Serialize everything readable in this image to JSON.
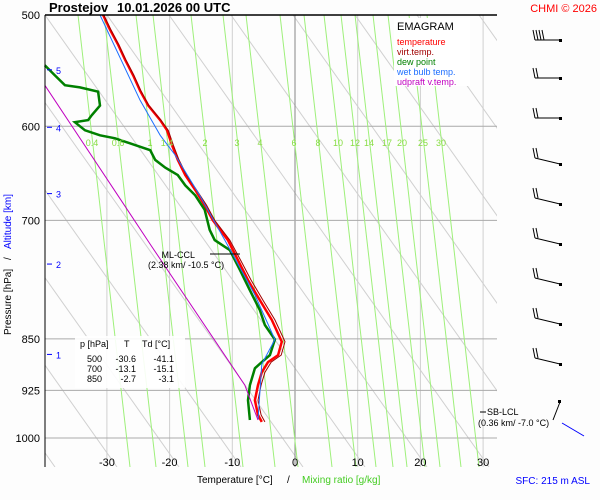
{
  "chart_data": {
    "type": "line",
    "title": "Prostejov",
    "datetime": "10.01.2026 00 UTC",
    "copyright": "CHMI © 2026",
    "diagram_name": "EMAGRAM",
    "xlabel": "Temperature [°C]",
    "xlabel_sep": "/",
    "xlabel2": "Mixing ratio [g/kg]",
    "ylabel": "Pressure [hPa]",
    "ylabel_sep": "/",
    "ylabel2": "Altitude [km]",
    "xlim": [
      -40,
      40
    ],
    "ylim": [
      1000,
      500
    ],
    "x_ticks": [
      "-30",
      "-20",
      "-10",
      "0",
      "10",
      "20",
      "30"
    ],
    "x_tick_values": [
      -30,
      -20,
      -10,
      0,
      10,
      20,
      30
    ],
    "y_ticks": [
      "500",
      "600",
      "700",
      "850",
      "925",
      "1000"
    ],
    "y_tick_values": [
      500,
      600,
      700,
      850,
      925,
      1000
    ],
    "altitude_ticks": [
      {
        "label": "5",
        "p": 547
      },
      {
        "label": "4",
        "p": 601
      },
      {
        "label": "3",
        "p": 670
      },
      {
        "label": "2",
        "p": 752
      },
      {
        "label": "1",
        "p": 872
      }
    ],
    "mixing_ratio_labels": [
      "0.4",
      "0.6",
      "1",
      "1.4",
      "2",
      "3",
      "4",
      "6",
      "8",
      "10",
      "12",
      "14",
      "17",
      "20",
      "25",
      "30"
    ],
    "legend": [
      {
        "label": "temperature",
        "color": "#ff0000"
      },
      {
        "label": "virt.temp.",
        "color": "#a00000"
      },
      {
        "label": "dew point",
        "color": "#008000"
      },
      {
        "label": "wet bulb temp.",
        "color": "#1e6fff"
      },
      {
        "label": "udpraft v.temp.",
        "color": "#c000c0"
      }
    ],
    "series": [
      {
        "name": "temperature",
        "color": "#ff0000",
        "points": [
          [
            -30.6,
            500
          ],
          [
            -29.5,
            512
          ],
          [
            -28.2,
            525
          ],
          [
            -27.1,
            538
          ],
          [
            -25.8,
            552
          ],
          [
            -24.7,
            566
          ],
          [
            -23.4,
            580
          ],
          [
            -21.5,
            594
          ],
          [
            -20.4,
            604
          ],
          [
            -19.6,
            619
          ],
          [
            -18.7,
            634
          ],
          [
            -17.5,
            650
          ],
          [
            -15.9,
            666
          ],
          [
            -14.4,
            683
          ],
          [
            -13.1,
            700
          ],
          [
            -10.7,
            723
          ],
          [
            -9.1,
            747
          ],
          [
            -7.5,
            772
          ],
          [
            -5.6,
            798
          ],
          [
            -3.7,
            824
          ],
          [
            -2.1,
            854
          ],
          [
            -2.7,
            873
          ],
          [
            -4.3,
            883
          ],
          [
            -5.3,
            898
          ],
          [
            -5.9,
            917
          ],
          [
            -6.4,
            940
          ],
          [
            -5.9,
            963
          ],
          [
            -5.3,
            974
          ]
        ]
      },
      {
        "name": "virt.temp.",
        "color": "#a00000",
        "points": [
          [
            -30.5,
            500
          ],
          [
            -29.4,
            512
          ],
          [
            -28.1,
            525
          ],
          [
            -27.0,
            538
          ],
          [
            -25.7,
            552
          ],
          [
            -24.6,
            566
          ],
          [
            -23.3,
            580
          ],
          [
            -21.4,
            594
          ],
          [
            -20.2,
            604
          ],
          [
            -19.4,
            619
          ],
          [
            -18.5,
            634
          ],
          [
            -17.3,
            650
          ],
          [
            -15.7,
            666
          ],
          [
            -14.1,
            683
          ],
          [
            -12.8,
            700
          ],
          [
            -10.4,
            723
          ],
          [
            -8.7,
            747
          ],
          [
            -7.0,
            772
          ],
          [
            -5.1,
            798
          ],
          [
            -3.2,
            824
          ],
          [
            -1.6,
            854
          ],
          [
            -2.2,
            873
          ],
          [
            -3.8,
            883
          ],
          [
            -4.8,
            898
          ],
          [
            -5.4,
            917
          ],
          [
            -5.9,
            940
          ],
          [
            -5.4,
            963
          ],
          [
            -4.8,
            974
          ]
        ]
      },
      {
        "name": "dew point",
        "color": "#008000",
        "points": [
          [
            -39.9,
            543
          ],
          [
            -38.3,
            552
          ],
          [
            -36.7,
            561
          ],
          [
            -34.3,
            563
          ],
          [
            -31.4,
            567
          ],
          [
            -31.1,
            580
          ],
          [
            -32.4,
            589
          ],
          [
            -33.0,
            594
          ],
          [
            -35.1,
            596
          ],
          [
            -33.5,
            604
          ],
          [
            -31.1,
            609
          ],
          [
            -28.7,
            612
          ],
          [
            -23.1,
            624
          ],
          [
            -22.3,
            634
          ],
          [
            -20.7,
            642
          ],
          [
            -18.7,
            650
          ],
          [
            -17.5,
            661
          ],
          [
            -15.9,
            672
          ],
          [
            -14.4,
            688
          ],
          [
            -13.6,
            711
          ],
          [
            -12.8,
            723
          ],
          [
            -10.4,
            735
          ],
          [
            -8.8,
            759
          ],
          [
            -7.2,
            785
          ],
          [
            -5.6,
            811
          ],
          [
            -4.8,
            831
          ],
          [
            -3.2,
            851
          ],
          [
            -4.0,
            873
          ],
          [
            -5.3,
            883
          ],
          [
            -6.4,
            892
          ],
          [
            -7.2,
            917
          ],
          [
            -7.5,
            940
          ],
          [
            -7.2,
            971
          ]
        ]
      },
      {
        "name": "wet bulb temp.",
        "color": "#1e6fff",
        "points": [
          [
            -31.1,
            500
          ],
          [
            -24.7,
            575
          ],
          [
            -21.5,
            609
          ],
          [
            -19.1,
            629
          ],
          [
            -15.2,
            672
          ],
          [
            -11.2,
            723
          ],
          [
            -6.4,
            791
          ],
          [
            -3.2,
            851
          ],
          [
            -5.3,
            886
          ],
          [
            -5.9,
            971
          ]
        ]
      },
      {
        "name": "udpraft v.temp.",
        "color": "#c000c0",
        "points": [
          [
            -39.9,
            561
          ],
          [
            -23.0,
            729
          ],
          [
            -8.0,
            917
          ],
          [
            -5.9,
            971
          ]
        ]
      }
    ],
    "annotations": {
      "ccl_label": "ML-CCL",
      "ccl_value": "(2.38 km/ -10.5 °C)",
      "lcl_label": "SB-LCL",
      "lcl_value": "(0.36 km/ -7.0 °C)",
      "surface": "SFC: 215 m ASL"
    },
    "table": {
      "headers": [
        "p [hPa]",
        "T",
        "Td [°C]"
      ],
      "rows": [
        [
          "500",
          "-30.6",
          "-41.1"
        ],
        [
          "700",
          "-13.1",
          "-15.1"
        ],
        [
          "850",
          "-2.7",
          "-3.1"
        ]
      ]
    },
    "wind_barb_count": 11
  }
}
